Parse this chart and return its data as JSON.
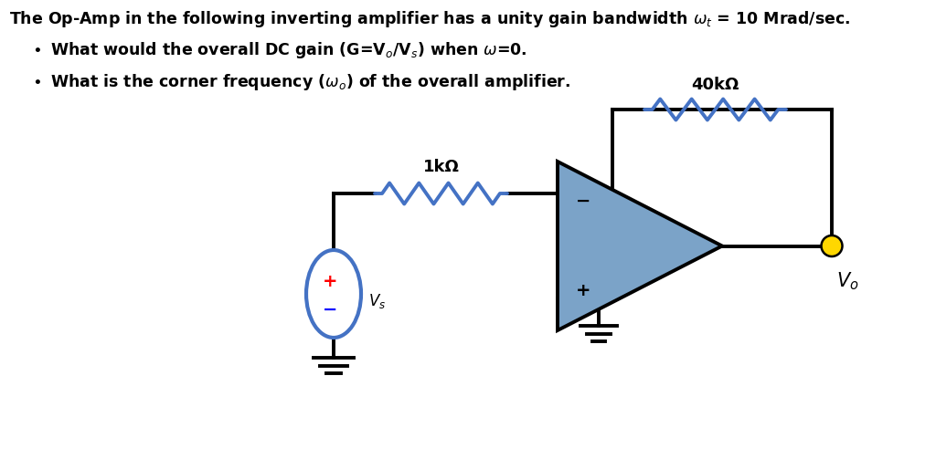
{
  "bg_color": "#ffffff",
  "text_color": "#000000",
  "wire_color": "#000000",
  "resistor_color": "#4472c4",
  "opamp_fill": "#7ba3c8",
  "opamp_edge": "#000000",
  "source_color": "#4472c4",
  "vo_dot_color": "#ffd700",
  "title_main": "The Op-Amp in the following inverting amplifier has a unity gain bandwidth ",
  "title_omega": "$\\omega_t$ = 10 Mrad/sec.",
  "bullet1": "What would the overall DC gain (G=V$_o$/V$_s$) when $\\omega$=0.",
  "bullet2": "What is the corner frequency ($\\omega_o$) of the overall amplifier.",
  "r1_label": "1kΩ",
  "r2_label": "40kΩ",
  "vo_label": "$V_o$",
  "vs_label": "$V_s$",
  "lw": 2.8,
  "lw_thin": 1.5,
  "fontsize_title": 12.5,
  "fontsize_labels": 13,
  "fontsize_vo": 15
}
